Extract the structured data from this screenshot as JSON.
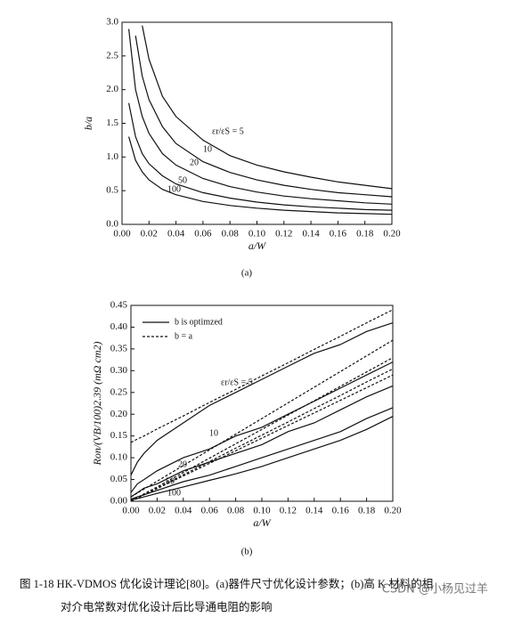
{
  "chart_data": [
    {
      "type": "line",
      "xlabel": "a/W",
      "ylabel": "b/a",
      "sublabel": "(a)",
      "x": [
        0.005,
        0.01,
        0.015,
        0.02,
        0.03,
        0.04,
        0.06,
        0.08,
        0.1,
        0.12,
        0.14,
        0.16,
        0.18,
        0.2
      ],
      "series": [
        {
          "label": "εr/εS = 5",
          "color": "#111111",
          "dash": false,
          "values": [
            null,
            null,
            2.95,
            2.45,
            1.9,
            1.6,
            1.25,
            1.02,
            0.88,
            0.78,
            0.7,
            0.63,
            0.58,
            0.53
          ]
        },
        {
          "label": "10",
          "color": "#111111",
          "dash": false,
          "values": [
            null,
            2.8,
            2.2,
            1.85,
            1.45,
            1.2,
            0.93,
            0.77,
            0.66,
            0.58,
            0.52,
            0.47,
            0.44,
            0.41
          ]
        },
        {
          "label": "20",
          "color": "#111111",
          "dash": false,
          "values": [
            2.9,
            2.0,
            1.6,
            1.35,
            1.05,
            0.88,
            0.68,
            0.56,
            0.48,
            0.42,
            0.38,
            0.35,
            0.32,
            0.3
          ]
        },
        {
          "label": "50",
          "color": "#111111",
          "dash": false,
          "values": [
            1.8,
            1.3,
            1.05,
            0.9,
            0.72,
            0.6,
            0.47,
            0.39,
            0.33,
            0.29,
            0.26,
            0.24,
            0.22,
            0.21
          ]
        },
        {
          "label": "100",
          "color": "#111111",
          "dash": false,
          "values": [
            1.3,
            0.95,
            0.78,
            0.66,
            0.52,
            0.44,
            0.34,
            0.28,
            0.24,
            0.21,
            0.19,
            0.17,
            0.16,
            0.15
          ]
        }
      ],
      "xlim": [
        0,
        0.2
      ],
      "ylim": [
        0,
        3
      ],
      "xticks": [
        {
          "value": 0,
          "label": "0.00"
        },
        {
          "value": 0.02,
          "label": "0.02"
        },
        {
          "value": 0.04,
          "label": "0.04"
        },
        {
          "value": 0.06,
          "label": "0.06"
        },
        {
          "value": 0.08,
          "label": "0.08"
        },
        {
          "value": 0.1,
          "label": "0.10"
        },
        {
          "value": 0.12,
          "label": "0.12"
        },
        {
          "value": 0.14,
          "label": "0.14"
        },
        {
          "value": 0.16,
          "label": "0.16"
        },
        {
          "value": 0.18,
          "label": "0.18"
        },
        {
          "value": 0.2,
          "label": "0.20"
        }
      ],
      "yticks": [
        {
          "value": 0,
          "label": "0.0"
        },
        0.5,
        {
          "value": 1,
          "label": "1.0"
        },
        1.5,
        {
          "value": 2,
          "label": "2.0"
        },
        2.5,
        {
          "value": 3,
          "label": "3.0"
        }
      ]
    },
    {
      "type": "line",
      "xlabel": "a/W",
      "ylabel": "Ron/(VB/100)2.39 (mΩ cm2)",
      "sublabel": "(b)",
      "legend": [
        {
          "label": "b is optimzed",
          "dash": false
        },
        {
          "label": "b = a",
          "dash": true
        }
      ],
      "x": [
        0,
        0.005,
        0.01,
        0.02,
        0.04,
        0.06,
        0.08,
        0.1,
        0.12,
        0.14,
        0.16,
        0.18,
        0.2
      ],
      "series": [
        {
          "label": "εr/εS = 5",
          "color": "#111111",
          "dash": false,
          "values": [
            0.06,
            0.09,
            0.11,
            0.14,
            0.18,
            0.22,
            0.25,
            0.28,
            0.31,
            0.34,
            0.36,
            0.39,
            0.41
          ]
        },
        {
          "label": "10",
          "color": "#111111",
          "dash": false,
          "values": [
            0.02,
            0.04,
            0.05,
            0.07,
            0.1,
            0.12,
            0.15,
            0.17,
            0.2,
            0.23,
            0.26,
            0.29,
            0.32
          ]
        },
        {
          "label": "20",
          "color": "#111111",
          "dash": false,
          "values": [
            0.01,
            0.02,
            0.03,
            0.04,
            0.07,
            0.09,
            0.11,
            0.13,
            0.16,
            0.18,
            0.21,
            0.24,
            0.265
          ]
        },
        {
          "label": "50",
          "color": "#111111",
          "dash": false,
          "values": [
            0.005,
            0.01,
            0.015,
            0.025,
            0.045,
            0.06,
            0.08,
            0.1,
            0.12,
            0.14,
            0.16,
            0.19,
            0.215
          ]
        },
        {
          "label": "100",
          "color": "#111111",
          "dash": false,
          "values": [
            0.003,
            0.006,
            0.01,
            0.018,
            0.033,
            0.048,
            0.063,
            0.08,
            0.1,
            0.12,
            0.14,
            0.165,
            0.195
          ]
        },
        {
          "color": "#111111",
          "dash": true,
          "values": [
            0.135,
            0.143,
            0.15,
            0.166,
            0.196,
            0.227,
            0.257,
            0.288,
            0.318,
            0.349,
            0.379,
            0.41,
            0.44
          ]
        },
        {
          "color": "#111111",
          "dash": true,
          "values": [
            0.01,
            0.019,
            0.028,
            0.046,
            0.082,
            0.118,
            0.154,
            0.19,
            0.226,
            0.262,
            0.298,
            0.334,
            0.37
          ]
        },
        {
          "color": "#111111",
          "dash": true,
          "values": [
            0,
            0.008,
            0.017,
            0.033,
            0.066,
            0.099,
            0.132,
            0.165,
            0.198,
            0.231,
            0.264,
            0.297,
            0.33
          ]
        },
        {
          "color": "#111111",
          "dash": true,
          "values": [
            0,
            0.008,
            0.015,
            0.03,
            0.061,
            0.091,
            0.122,
            0.152,
            0.182,
            0.213,
            0.243,
            0.274,
            0.304
          ]
        },
        {
          "color": "#111111",
          "dash": true,
          "values": [
            0,
            0.007,
            0.015,
            0.029,
            0.058,
            0.087,
            0.116,
            0.145,
            0.174,
            0.203,
            0.232,
            0.261,
            0.29
          ]
        }
      ],
      "xlim": [
        0,
        0.2
      ],
      "ylim": [
        0,
        0.45
      ],
      "xticks": [
        {
          "value": 0,
          "label": "0.00"
        },
        {
          "value": 0.02,
          "label": "0.02"
        },
        {
          "value": 0.04,
          "label": "0.04"
        },
        {
          "value": 0.06,
          "label": "0.06"
        },
        {
          "value": 0.08,
          "label": "0.08"
        },
        {
          "value": 0.1,
          "label": "0.10"
        },
        {
          "value": 0.12,
          "label": "0.12"
        },
        {
          "value": 0.14,
          "label": "0.14"
        },
        {
          "value": 0.16,
          "label": "0.16"
        },
        {
          "value": 0.18,
          "label": "0.18"
        },
        {
          "value": 0.2,
          "label": "0.20"
        }
      ],
      "yticks": [
        {
          "value": 0,
          "label": "0.00"
        },
        0.05,
        {
          "value": 0.1,
          "label": "0.10"
        },
        0.15,
        {
          "value": 0.2,
          "label": "0.20"
        },
        0.25,
        {
          "value": 0.3,
          "label": "0.30"
        },
        0.35,
        {
          "value": 0.4,
          "label": "0.40"
        },
        0.45
      ]
    }
  ],
  "caption": [
    "图 1-18 HK-VDMOS 优化设计理论[80]。(a)器件尺寸优化设计参数；(b)高 K 材料的相",
    "对介电常数对优化设计后比导通电阻的影响"
  ],
  "watermark": "CSDN @小杨见过羊"
}
